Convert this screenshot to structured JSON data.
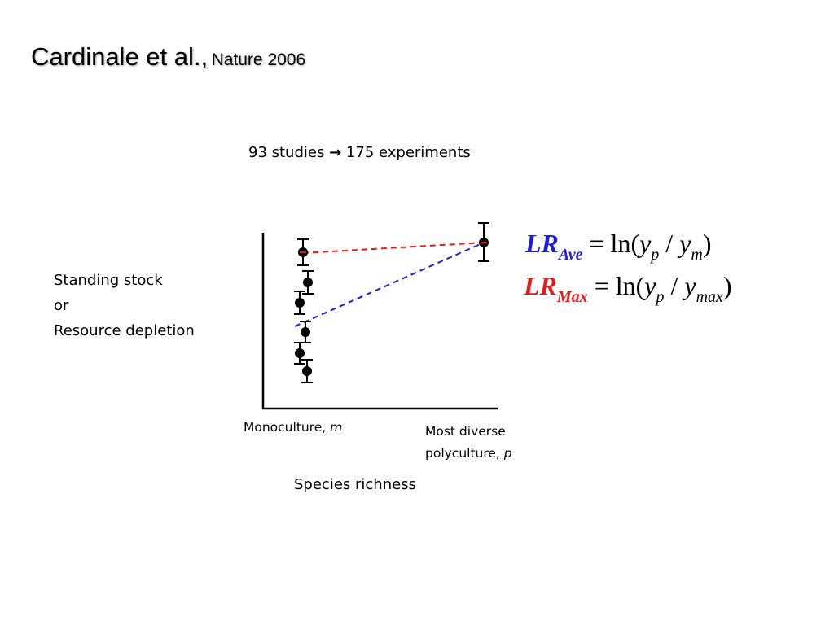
{
  "title": {
    "main": "Cardinale et al.,",
    "sub": "Nature 2006"
  },
  "subtitle": {
    "before": "93 studies",
    "arrow": "→",
    "after": "175 experiments"
  },
  "y_axis_label": [
    "Standing stock",
    "or",
    "Resource depletion"
  ],
  "x_labels": {
    "monoculture": {
      "text": "Monoculture, ",
      "var": "m"
    },
    "polyculture": {
      "line1": "Most diverse",
      "line2": "polyculture, ",
      "var": "p"
    }
  },
  "x_axis_title": "Species richness",
  "formulas": {
    "ave": {
      "lr": "LR",
      "sub": "Ave",
      "eq": "= ln(",
      "yp": "y",
      "p": "p",
      "div": " / ",
      "ym": "y",
      "m": "m",
      "close": ")",
      "color": "#1f1fd6"
    },
    "max": {
      "lr": "LR",
      "sub": "Max",
      "eq": "= ln(",
      "yp": "y",
      "p": "p",
      "div": " / ",
      "ym": "y",
      "m": "max",
      "close": ")",
      "color": "#e01b1b"
    }
  },
  "colors": {
    "ave_line": "#1f1fd6",
    "max_line": "#e01b1b",
    "points": "#000000"
  }
}
